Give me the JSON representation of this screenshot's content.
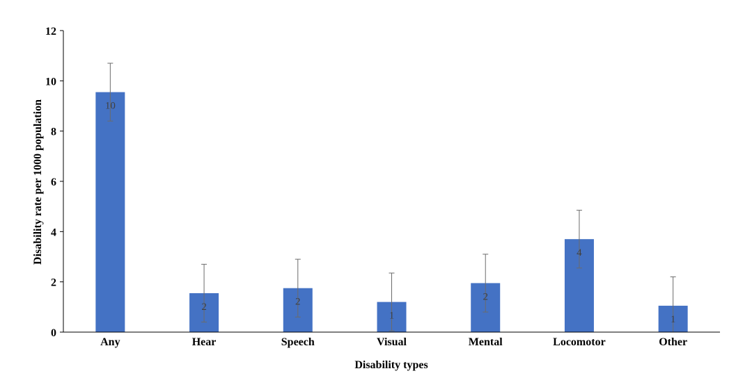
{
  "chart_data": {
    "type": "bar",
    "title": "",
    "xlabel": "Disability types",
    "ylabel": "Disability rate per 1000 population",
    "categories": [
      "Any",
      "Hear",
      "Speech",
      "Visual",
      "Mental",
      "Locomotor",
      "Other"
    ],
    "values": [
      9.55,
      1.55,
      1.75,
      1.2,
      1.95,
      3.7,
      1.05
    ],
    "error_upper": [
      10.7,
      2.7,
      2.9,
      2.35,
      3.1,
      4.85,
      2.2
    ],
    "error_lower": [
      8.4,
      0.4,
      0.6,
      0.05,
      0.8,
      2.55,
      0.0
    ],
    "data_labels": [
      "10",
      "2",
      "2",
      "1",
      "2",
      "4",
      "1"
    ],
    "ylim": [
      0,
      12
    ],
    "yticks": [
      0,
      2,
      4,
      6,
      8,
      10,
      12
    ],
    "grid": false,
    "legend": "none",
    "bar_color": "#4472C4",
    "error_color": "#6b6b6b"
  }
}
